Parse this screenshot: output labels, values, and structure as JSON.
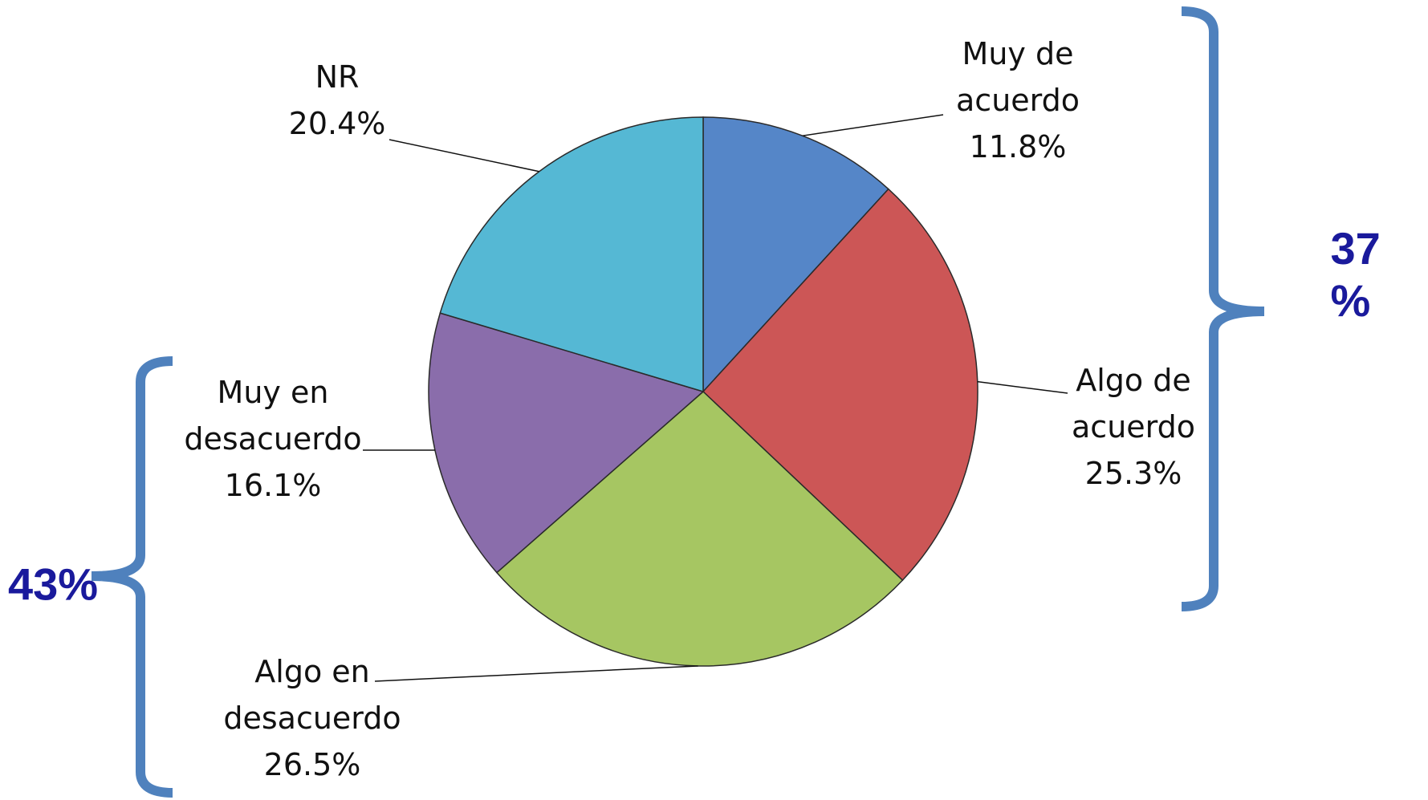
{
  "chart_data": {
    "type": "pie",
    "categories": [
      "Muy de acuerdo",
      "Algo de acuerdo",
      "Algo en desacuerdo",
      "Muy en desacuerdo",
      "NR"
    ],
    "values": [
      11.8,
      25.3,
      26.5,
      16.1,
      20.4
    ],
    "value_labels": [
      "11.8%",
      "25.3%",
      "26.5%",
      "16.1%",
      "20.4%"
    ],
    "colors": [
      "#5586c8",
      "#cc5656",
      "#a6c662",
      "#8a6dab",
      "#55b8d4"
    ],
    "annotations": [
      "37 %",
      "43%"
    ]
  }
}
